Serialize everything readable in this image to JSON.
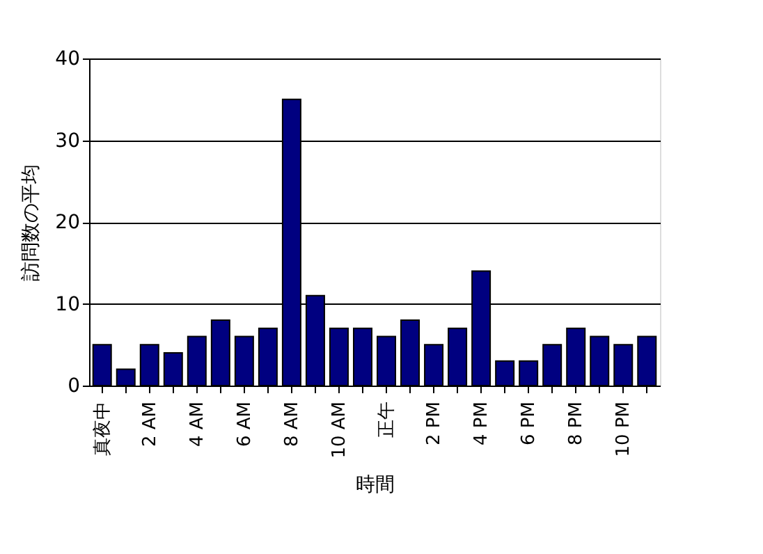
{
  "chart_data": {
    "type": "bar",
    "xlabel": "時間",
    "ylabel": "訪問数の平均",
    "categories": [
      "真夜中",
      null,
      "2 AM",
      null,
      "4 AM",
      null,
      "6 AM",
      null,
      "8 AM",
      null,
      "10 AM",
      null,
      "正午",
      null,
      "2 PM",
      null,
      "4 PM",
      null,
      "6 PM",
      null,
      "8 PM",
      null,
      "10 PM",
      null
    ],
    "values": [
      5,
      2,
      5,
      4,
      6,
      8,
      6,
      7,
      35,
      11,
      7,
      7,
      6,
      8,
      5,
      7,
      14,
      3,
      3,
      5,
      7,
      6,
      5,
      6
    ],
    "color": "#000080",
    "ylim": [
      0,
      40
    ],
    "yticks": [
      0,
      10,
      20,
      30,
      40
    ],
    "grid": "y"
  }
}
